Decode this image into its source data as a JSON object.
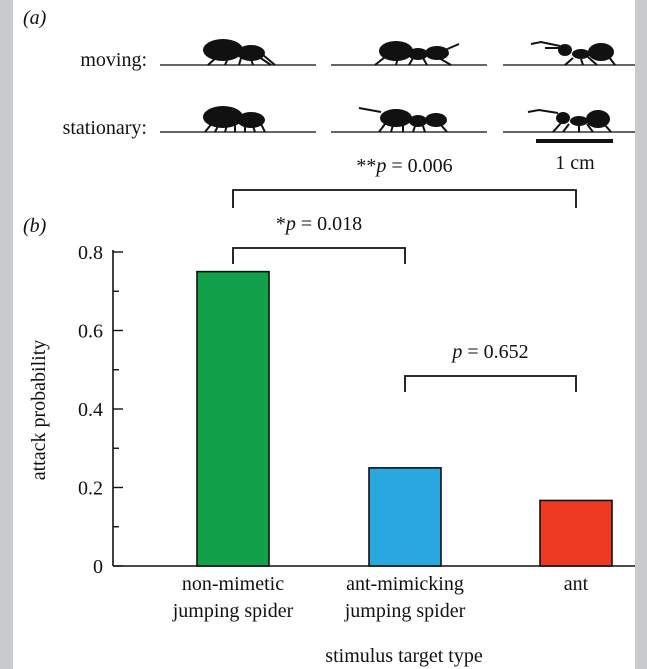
{
  "panel_a": {
    "label": "(a)",
    "row_labels": [
      "moving:",
      "stationary:"
    ],
    "scale_label": "1 cm"
  },
  "panel_b": {
    "label": "(b)"
  },
  "significance": [
    {
      "text": "**p = 0.006",
      "from": 0,
      "to": 2
    },
    {
      "text": "*p = 0.018",
      "from": 0,
      "to": 1
    },
    {
      "text": "p = 0.652",
      "from": 1,
      "to": 2
    }
  ],
  "chart_data": {
    "type": "bar",
    "categories": [
      [
        "non-mimetic",
        "jumping spider"
      ],
      [
        "ant-mimicking",
        "jumping spider"
      ],
      [
        "ant"
      ]
    ],
    "values": [
      0.75,
      0.25,
      0.167
    ],
    "colors": [
      "#12a14a",
      "#29a8e0",
      "#ee3a23"
    ],
    "ylabel": "attack probability",
    "xlabel": "stimulus target type",
    "ylim": [
      0,
      0.8
    ],
    "yticks": [
      "0",
      "0.2",
      "0.4",
      "0.6",
      "0.8"
    ],
    "grid": false
  }
}
